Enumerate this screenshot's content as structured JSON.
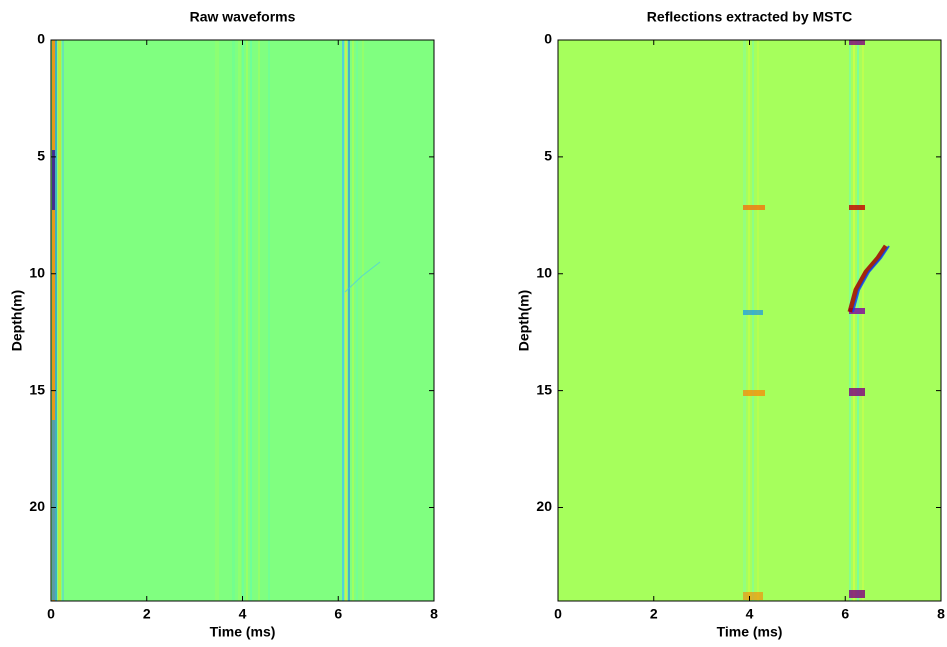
{
  "chart_data": [
    {
      "type": "image",
      "title": "Raw waveforms",
      "xlabel": "Time (ms)",
      "ylabel": "Depth(m)",
      "xlim": [
        0,
        8
      ],
      "ylim": [
        0,
        24
      ],
      "y_reversed": true,
      "xticks": [
        0,
        2,
        4,
        6,
        8
      ],
      "yticks": [
        0,
        5,
        10,
        15,
        20
      ],
      "color": "#80ff80"
    },
    {
      "type": "image",
      "title": "Reflections extracted by MSTC",
      "xlabel": "Time (ms)",
      "ylabel": "Depth(m)",
      "xlim": [
        0,
        8
      ],
      "ylim": [
        0,
        24
      ],
      "y_reversed": true,
      "xticks": [
        0,
        2,
        4,
        6,
        8
      ],
      "yticks": [
        0,
        5,
        10,
        15,
        20
      ],
      "color": "#a6ff5c"
    }
  ]
}
